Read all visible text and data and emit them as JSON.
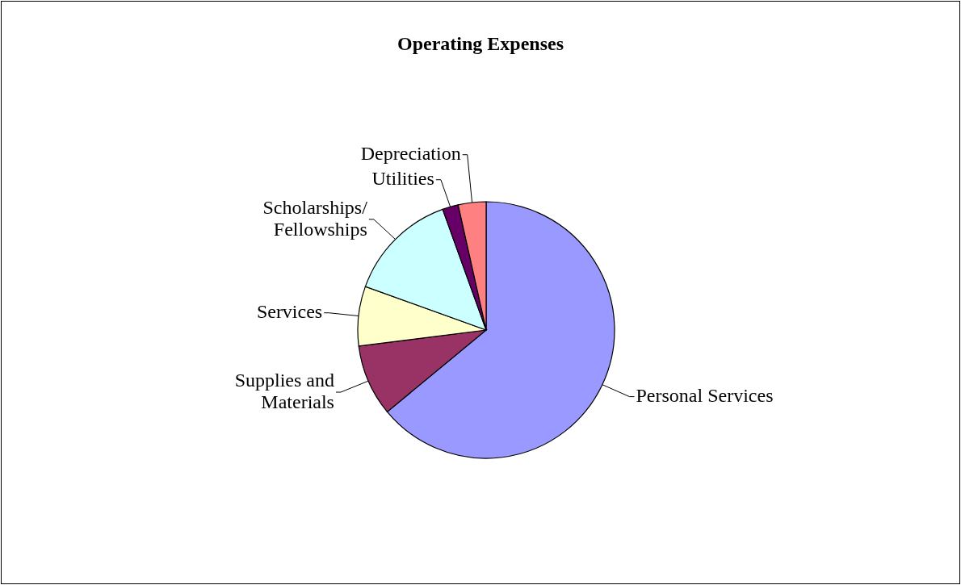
{
  "chart_data": {
    "type": "pie",
    "title": "Operating Expenses",
    "categories": [
      "Personal Services",
      "Supplies and Materials",
      "Services",
      "Scholarships/ Fellowships",
      "Utilities",
      "Depreciation"
    ],
    "values": [
      64,
      9,
      7.5,
      14,
      2,
      3.5
    ],
    "colors": [
      "#9999ff",
      "#993366",
      "#ffffcc",
      "#ccffff",
      "#660066",
      "#ff8080"
    ],
    "legend": false
  }
}
